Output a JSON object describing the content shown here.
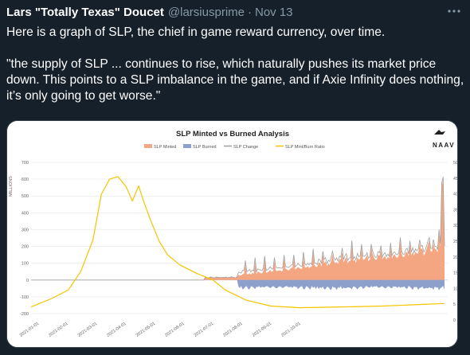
{
  "tweet": {
    "author_name": "Lars \"Totally Texas\" Doucet",
    "author_handle": "@larsiusprime",
    "separator": "·",
    "timestamp": "Nov 13",
    "more_icon": "more-horizontal-icon",
    "text_line1": "Here is a graph of SLP, the chief in game reward currency, over time.",
    "text_quote": "\"the supply of SLP ... continues to rise, which naturally pushes its market price down. This points to a SLP imbalance in the game, and if Axie Infinity does nothing, it’s only going to get worse.\""
  },
  "chart_data": {
    "type": "area",
    "title": "SLP Minted vs Burned Analysis",
    "logo_text": "NAAV",
    "ylabel": "MILLIONS",
    "ylim": [
      -200,
      700
    ],
    "y_ticks": [
      "700",
      "600",
      "500",
      "400",
      "300",
      "200",
      "100",
      "0",
      "-100",
      "-200"
    ],
    "y2_ticks": [
      "50",
      "45",
      "40",
      "35",
      "30",
      "25",
      "20",
      "15",
      "10",
      "5",
      "0"
    ],
    "x_ticks": [
      "2021-01-01",
      "2021-02-01",
      "2021-03-01",
      "2021-04-01",
      "2021-05-01",
      "2021-06-01",
      "2021-07-01",
      "2021-08-01",
      "2021-09-01",
      "2021-10-01"
    ],
    "legend": [
      {
        "name": "SLP Minted",
        "color": "#f4a582",
        "kind": "area"
      },
      {
        "name": "SLP Burned",
        "color": "#8da0cb",
        "kind": "area"
      },
      {
        "name": "SLP Change",
        "color": "#a0a0a0",
        "kind": "line"
      },
      {
        "name": "SLP Mint/Burn Ratio",
        "color": "#f5c400",
        "kind": "line"
      }
    ],
    "grid": true,
    "legend_position": "top"
  }
}
